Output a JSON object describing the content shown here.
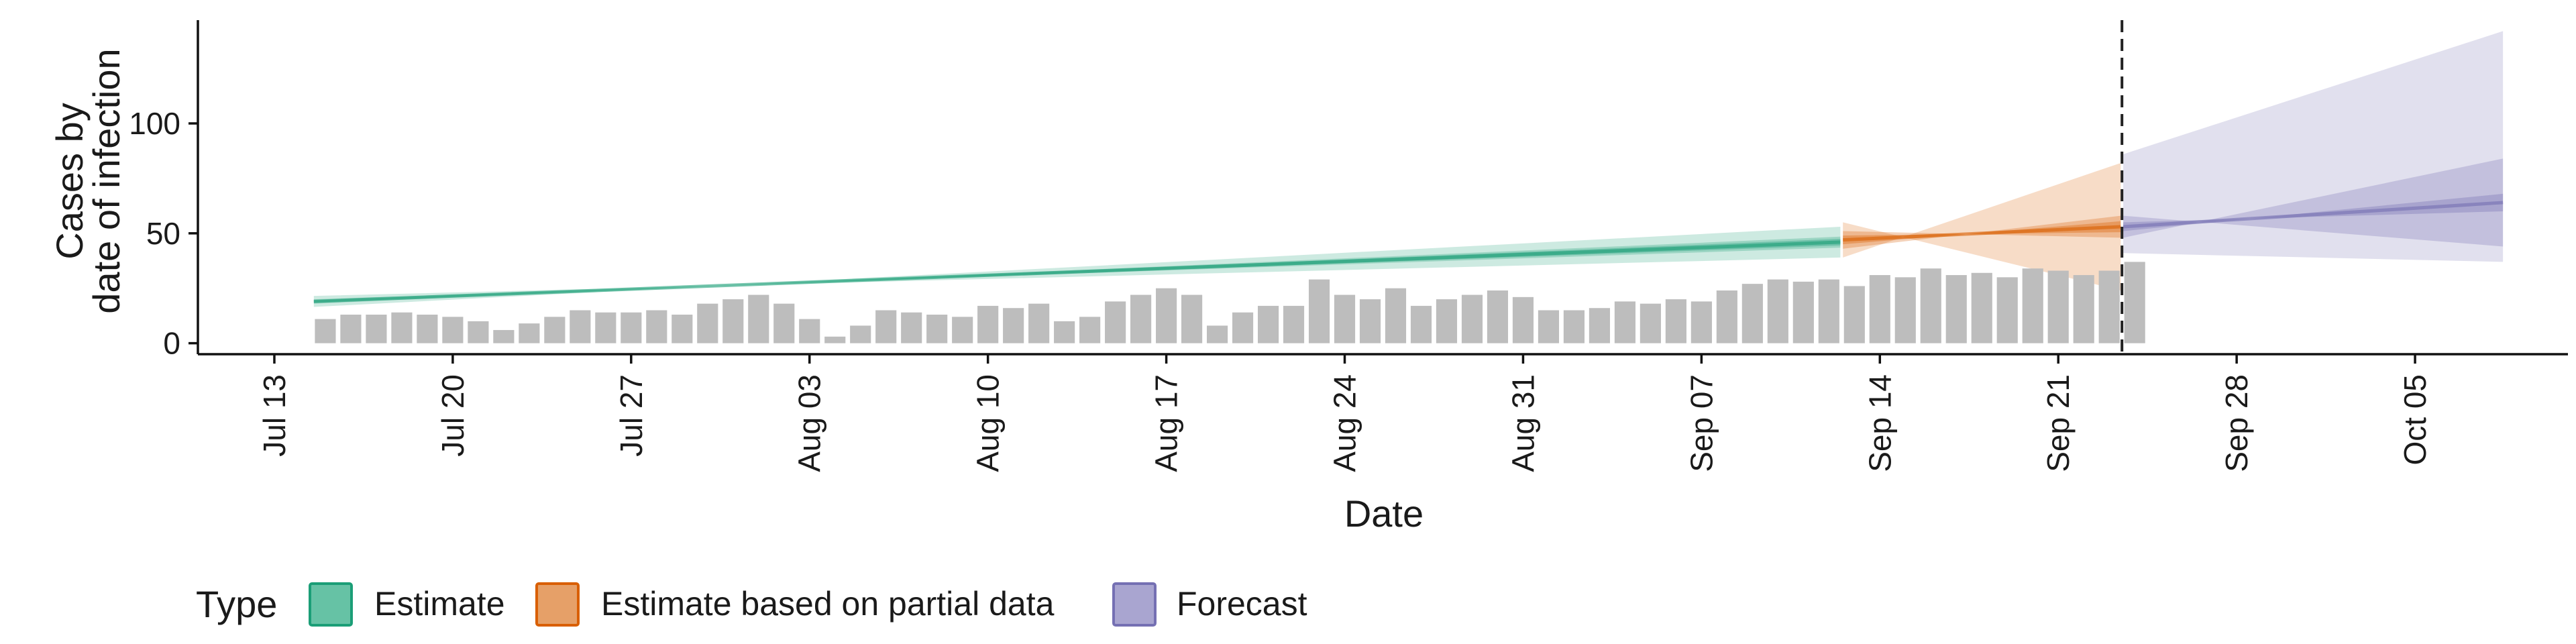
{
  "chart_data": {
    "type": "bar",
    "xlabel": "Date",
    "ylabel_lines": [
      "Cases by",
      "date of infection"
    ],
    "x_ticks": [
      "2020-07-13",
      "2020-07-20",
      "2020-07-27",
      "2020-08-03",
      "2020-08-10",
      "2020-08-17",
      "2020-08-24",
      "2020-08-31",
      "2020-09-07",
      "2020-09-14",
      "2020-09-21",
      "2020-09-28",
      "2020-10-05"
    ],
    "x_tick_labels": [
      "Jul 13",
      "Jul 20",
      "Jul 27",
      "Aug 03",
      "Aug 10",
      "Aug 17",
      "Aug 24",
      "Aug 31",
      "Sep 07",
      "Sep 14",
      "Sep 21",
      "Sep 28",
      "Oct 05"
    ],
    "xlim": [
      "2020-07-10",
      "2020-10-11"
    ],
    "ylim": [
      -5,
      147
    ],
    "y_ticks": [
      0,
      50,
      100
    ],
    "legend": {
      "title": "Type",
      "position": "bottom-left",
      "items": [
        {
          "label": "Estimate",
          "color": "#66c2a5",
          "border": "#1b9e77"
        },
        {
          "label": "Estimate based on partial data",
          "color": "#e6a068",
          "border": "#d95f02"
        },
        {
          "label": "Forecast",
          "color": "#a9a5d0",
          "border": "#7570b3"
        }
      ]
    },
    "reported_cases": {
      "start_date": "2020-07-15",
      "color": "#bdbdbd",
      "values": [
        11,
        13,
        13,
        14,
        13,
        12,
        10,
        6,
        9,
        12,
        15,
        14,
        14,
        15,
        13,
        18,
        20,
        22,
        18,
        11,
        3,
        8,
        15,
        14,
        13,
        12,
        17,
        16,
        18,
        10,
        12,
        19,
        22,
        25,
        22,
        8,
        14,
        17,
        17,
        29,
        22,
        20,
        25,
        17,
        20,
        22,
        24,
        21,
        15,
        15,
        16,
        19,
        18,
        20,
        19,
        24,
        27,
        29,
        28,
        29,
        26,
        31,
        30,
        34,
        31,
        32,
        30,
        34,
        33,
        31,
        33,
        37
      ]
    },
    "series": [
      {
        "name": "Estimate",
        "color": "#1b9e77",
        "start_date": "2020-07-15",
        "end_date": "2020-09-12",
        "median": [
          19,
          46
        ],
        "ci20": [
          18.5,
          47.5
        ],
        "ci50": [
          18,
          48.5
        ],
        "ci90": [
          16.5,
          53
        ]
      },
      {
        "name": "Estimate based on partial data",
        "color": "#d95f02",
        "start_date": "2020-09-13",
        "end_date": "2020-09-23",
        "median": [
          47,
          53
        ],
        "ci20": [
          45,
          55.5
        ],
        "ci50": [
          43,
          58
        ],
        "ci90": [
          39,
          82
        ]
      },
      {
        "name": "Forecast",
        "color": "#7570b3",
        "start_date": "2020-09-24",
        "end_date": "2020-10-08",
        "median": [
          53,
          64
        ],
        "ci20": [
          51,
          68
        ],
        "ci50": [
          48,
          84
        ],
        "ci90_lower": [
          41,
          37
        ],
        "ci90_upper": [
          86,
          142
        ]
      }
    ],
    "vline_date": "2020-09-23"
  }
}
